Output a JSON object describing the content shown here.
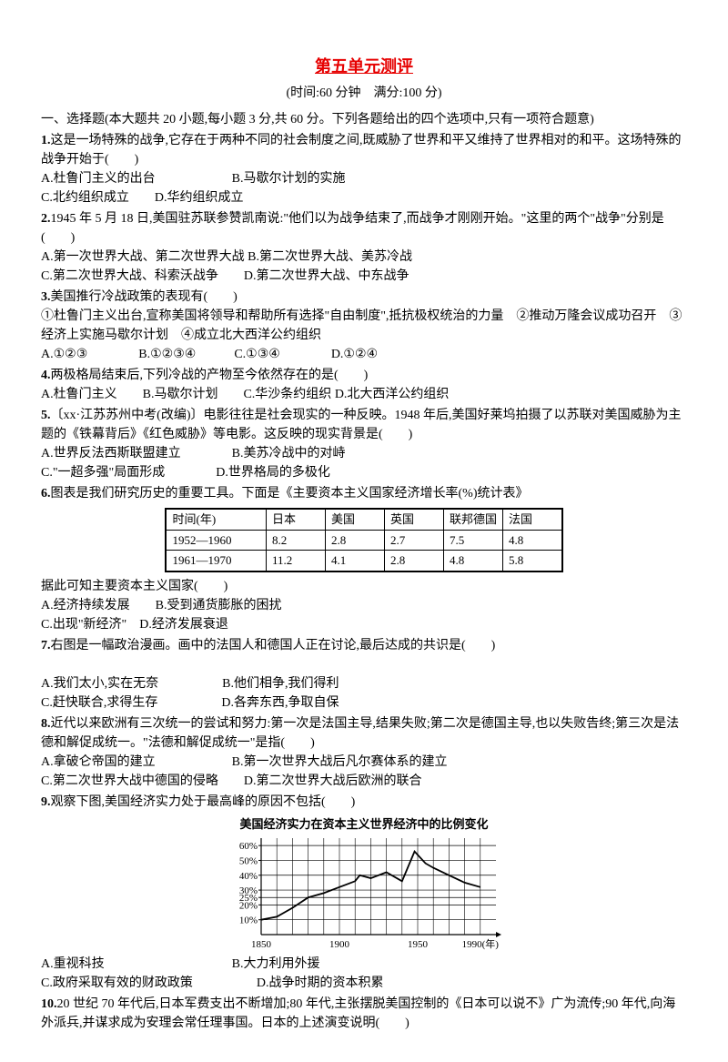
{
  "title": "第五单元测评",
  "subtitle": "(时间:60 分钟　满分:100 分)",
  "section1": "一、选择题(本大题共 20 小题,每小题 3 分,共 60 分。下列各题给出的四个选项中,只有一项符合题意)",
  "q1": {
    "num": "1.",
    "text": "这是一场特殊的战争,它存在于两种不同的社会制度之间,既威胁了世界和平又维持了世界相对的和平。这场特殊的战争开始于(　　)",
    "a": "A.杜鲁门主义的出台",
    "b": "B.马歇尔计划的实施",
    "c": "C.北约组织成立",
    "d": "D.华约组织成立"
  },
  "q2": {
    "num": "2.",
    "text": "1945 年 5 月 18 日,美国驻苏联参赞凯南说:\"他们以为战争结束了,而战争才刚刚开始。\"这里的两个\"战争\"分别是(　　)",
    "a": "A.第一次世界大战、第二次世界大战",
    "b": "B.第二次世界大战、美苏冷战",
    "c": "C.第二次世界大战、科索沃战争",
    "d": "D.第二次世界大战、中东战争"
  },
  "q3": {
    "num": "3.",
    "text": "美国推行冷战政策的表现有(　　)",
    "options_text": "①杜鲁门主义出台,宣称美国将领导和帮助所有选择\"自由制度\",抵抗极权统治的力量　②推动万隆会议成功召开　③经济上实施马歇尔计划　④成立北大西洋公约组织",
    "a": "A.①②③",
    "b": "B.①②③④",
    "c": "C.①③④",
    "d": "D.①②④"
  },
  "q4": {
    "num": "4.",
    "text": "两极格局结束后,下列冷战的产物至今依然存在的是(　　)",
    "a": "A.杜鲁门主义",
    "b": "B.马歇尔计划",
    "c": "C.华沙条约组织",
    "d": "D.北大西洋公约组织"
  },
  "q5": {
    "num": "5.",
    "text": "〔xx·江苏苏州中考(改编)〕电影往往是社会现实的一种反映。1948 年后,美国好莱坞拍摄了以苏联对美国威胁为主题的《铁幕背后》《红色威胁》等电影。这反映的现实背景是(　　)",
    "a": "A.世界反法西斯联盟建立",
    "b": "B.美苏冷战中的对峙",
    "c": "C.\"一超多强\"局面形成",
    "d": "D.世界格局的多极化"
  },
  "q6": {
    "num": "6.",
    "text": "图表是我们研究历史的重要工具。下面是《主要资本主义国家经济增长率(%)统计表》",
    "after": "据此可知主要资本主义国家(　　)",
    "a": "A.经济持续发展",
    "b": "B.受到通货膨胀的困扰",
    "c": "C.出现\"新经济\"",
    "d": "D.经济发展衰退"
  },
  "table6": {
    "header": [
      "时间(年)",
      "日本",
      "美国",
      "英国",
      "联邦德国",
      "法国"
    ],
    "row1": [
      "1952—1960",
      "8.2",
      "2.8",
      "2.7",
      "7.5",
      "4.8"
    ],
    "row2": [
      "1961—1970",
      "11.2",
      "4.1",
      "2.8",
      "4.8",
      "5.8"
    ]
  },
  "q7": {
    "num": "7.",
    "text": "右图是一幅政治漫画。画中的法国人和德国人正在讨论,最后达成的共识是(　　)",
    "a": "A.我们太小,实在无奈",
    "b": "B.他们相争,我们得利",
    "c": "C.赶快联合,求得生存",
    "d": "D.各奔东西,争取自保"
  },
  "q8": {
    "num": "8.",
    "text": "近代以来欧洲有三次统一的尝试和努力:第一次是法国主导,结果失败;第二次是德国主导,也以失败告终;第三次是法德和解促成统一。\"法德和解促成统一\"是指(　　)",
    "a": "A.拿破仑帝国的建立",
    "b": "B.第一次世界大战后凡尔赛体系的建立",
    "c": "C.第二次世界大战中德国的侵略",
    "d": "D.第二次世界大战后欧洲的联合"
  },
  "q9": {
    "num": "9.",
    "text": "观察下图,美国经济实力处于最高峰的原因不包括(　　)",
    "chart_title": "美国经济实力在资本主义世界经济中的比例变化",
    "a": "A.重视科技",
    "b": "B.大力利用外援",
    "c": "C.政府采取有效的财政政策",
    "d": "D.战争时期的资本积累"
  },
  "chart9": {
    "type": "line",
    "ylabel_ticks": [
      "10%",
      "20%",
      "25%",
      "30%",
      "40%",
      "50%",
      "60%"
    ],
    "xticks": [
      "1850",
      "1900",
      "1950",
      "1990(年)"
    ],
    "x_values": [
      1850,
      1860,
      1870,
      1880,
      1890,
      1900,
      1910,
      1913,
      1920,
      1930,
      1940,
      1948,
      1955,
      1960,
      1970,
      1980,
      1990
    ],
    "y_values": [
      10,
      12,
      18,
      25,
      28,
      32,
      36,
      40,
      38,
      42,
      36,
      56,
      48,
      45,
      40,
      35,
      32
    ],
    "xlim": [
      1850,
      2000
    ],
    "ylim": [
      0,
      65
    ],
    "grid_color": "#000000",
    "line_color": "#000000",
    "background_color": "#ffffff"
  },
  "q10": {
    "num": "10.",
    "text": "20 世纪 70 年代后,日本军费支出不断增加;80 年代,主张摆脱美国控制的《日本可以说不》广为流传;90 年代,向海外派兵,并谋求成为安理会常任理事国。日本的上述演变说明(　　)"
  }
}
